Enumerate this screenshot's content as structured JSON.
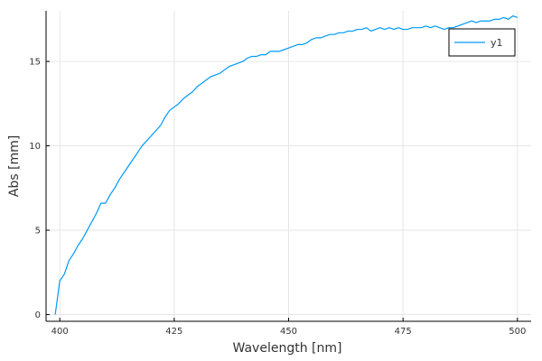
{
  "chart_data": {
    "type": "line",
    "title": "",
    "xlabel": "Wavelength [nm]",
    "ylabel": "Abs [mm]",
    "xlim": [
      397,
      503
    ],
    "ylim": [
      -0.4,
      18.0
    ],
    "xticks": [
      400,
      425,
      450,
      475,
      500
    ],
    "yticks": [
      0,
      5,
      10,
      15
    ],
    "xtick_labels": [
      "400",
      "425",
      "450",
      "475",
      "500"
    ],
    "ytick_labels": [
      "0",
      "5",
      "10",
      "15"
    ],
    "grid": true,
    "legend": {
      "position": "top-right"
    },
    "series": [
      {
        "name": "y1",
        "color": "#009af9",
        "x": [
          399,
          400,
          401,
          402,
          403,
          404,
          405,
          406,
          407,
          408,
          409,
          410,
          411,
          412,
          413,
          414,
          415,
          416,
          417,
          418,
          419,
          420,
          421,
          422,
          423,
          424,
          425,
          426,
          427,
          428,
          429,
          430,
          431,
          432,
          433,
          434,
          435,
          436,
          437,
          438,
          439,
          440,
          441,
          442,
          443,
          444,
          445,
          446,
          447,
          448,
          449,
          450,
          451,
          452,
          453,
          454,
          455,
          456,
          457,
          458,
          459,
          460,
          461,
          462,
          463,
          464,
          465,
          466,
          467,
          468,
          469,
          470,
          471,
          472,
          473,
          474,
          475,
          476,
          477,
          478,
          479,
          480,
          481,
          482,
          483,
          484,
          485,
          486,
          487,
          488,
          489,
          490,
          491,
          492,
          493,
          494,
          495,
          496,
          497,
          498,
          499,
          500
        ],
        "y": [
          0.0,
          2.0,
          2.4,
          3.2,
          3.6,
          4.1,
          4.5,
          5.0,
          5.5,
          6.0,
          6.6,
          6.6,
          7.1,
          7.5,
          8.0,
          8.4,
          8.8,
          9.2,
          9.6,
          10.0,
          10.3,
          10.6,
          10.9,
          11.2,
          11.7,
          12.1,
          12.3,
          12.5,
          12.8,
          13.0,
          13.2,
          13.5,
          13.7,
          13.9,
          14.1,
          14.2,
          14.3,
          14.5,
          14.7,
          14.8,
          14.9,
          15.0,
          15.2,
          15.3,
          15.3,
          15.4,
          15.4,
          15.6,
          15.6,
          15.6,
          15.7,
          15.8,
          15.9,
          16.0,
          16.0,
          16.1,
          16.3,
          16.4,
          16.4,
          16.5,
          16.6,
          16.6,
          16.7,
          16.7,
          16.8,
          16.8,
          16.9,
          16.9,
          17.0,
          16.8,
          16.9,
          17.0,
          16.9,
          17.0,
          16.9,
          17.0,
          16.9,
          16.9,
          17.0,
          17.0,
          17.0,
          17.1,
          17.0,
          17.1,
          17.0,
          16.9,
          17.0,
          17.0,
          17.1,
          17.2,
          17.3,
          17.4,
          17.3,
          17.4,
          17.4,
          17.4,
          17.5,
          17.5,
          17.6,
          17.5,
          17.7,
          17.6
        ]
      }
    ]
  }
}
